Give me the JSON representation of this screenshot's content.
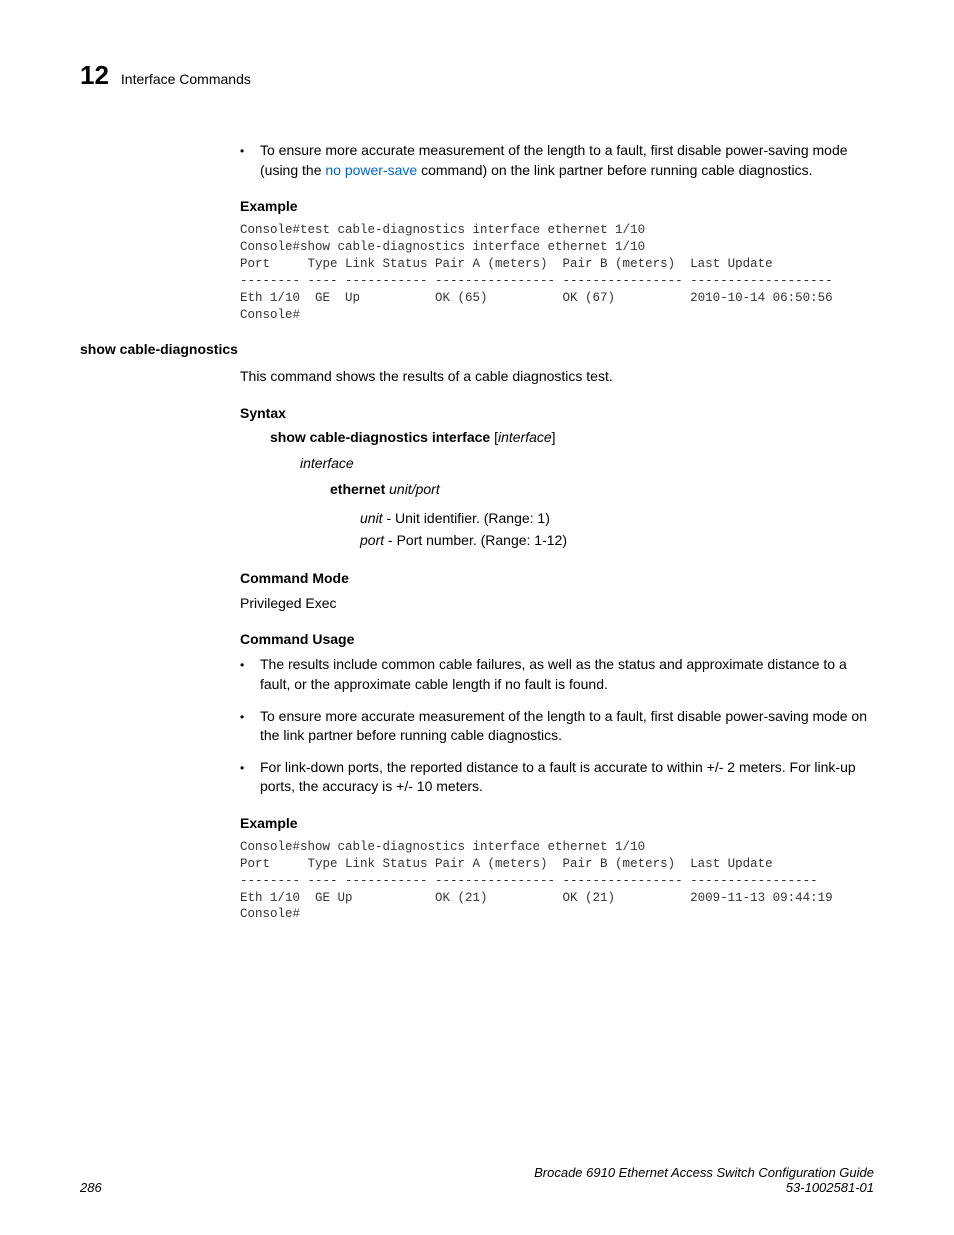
{
  "header": {
    "chapter_num": "12",
    "chapter_title": "Interface Commands"
  },
  "intro_bullet": {
    "pre": "To ensure more accurate measurement of the length to a fault, first disable power-saving mode (using the ",
    "link": "no power-save",
    "post": " command) on the link partner before running cable diagnostics."
  },
  "example1": {
    "heading": "Example",
    "code": "Console#test cable-diagnostics interface ethernet 1/10\nConsole#show cable-diagnostics interface ethernet 1/10\nPort     Type Link Status Pair A (meters)  Pair B (meters)  Last Update\n-------- ---- ----------- ---------------- ---------------- -------------------\nEth 1/10  GE  Up          OK (65)          OK (67)          2010-10-14 06:50:56\nConsole#"
  },
  "command": {
    "name": "show cable-diagnostics",
    "description": "This command shows the results of a cable diagnostics test.",
    "syntax": {
      "heading": "Syntax",
      "cmd_bold": "show cable-diagnostics interface",
      "cmd_arg": "interface",
      "param": "interface",
      "sub_bold": "ethernet",
      "sub_args": "unit/port",
      "unit_label": "unit",
      "unit_desc": " - Unit identifier. (Range: 1)",
      "port_label": "port",
      "port_desc": " - Port number. (Range: 1-12)"
    },
    "mode": {
      "heading": "Command Mode",
      "value": "Privileged Exec"
    },
    "usage": {
      "heading": "Command Usage",
      "bullets": [
        "The results include common cable failures, as well as the status and approximate distance to a fault, or the approximate cable length if no fault is found.",
        "To ensure more accurate measurement of the length to a fault, first disable power-saving mode on the link partner before running cable diagnostics.",
        "For link-down ports, the reported distance to a fault is accurate to within +/- 2 meters. For link-up ports, the accuracy is +/- 10 meters."
      ]
    }
  },
  "example2": {
    "heading": "Example",
    "code": "Console#show cable-diagnostics interface ethernet 1/10\nPort     Type Link Status Pair A (meters)  Pair B (meters)  Last Update\n-------- ---- ----------- ---------------- ---------------- -----------------\nEth 1/10  GE Up           OK (21)          OK (21)          2009-11-13 09:44:19\nConsole#"
  },
  "footer": {
    "page_num": "286",
    "doc_title": "Brocade 6910 Ethernet Access Switch Configuration Guide",
    "doc_id": "53-1002581-01"
  }
}
